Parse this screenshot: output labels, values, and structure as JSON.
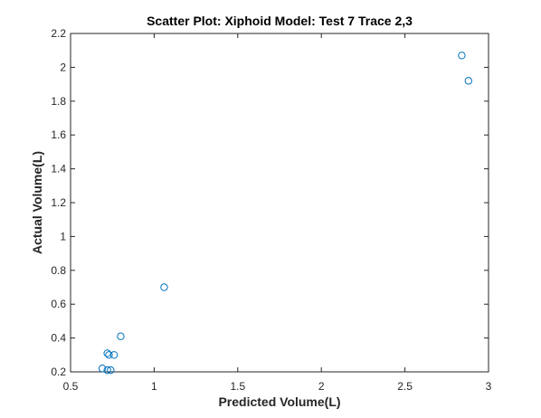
{
  "chart_data": {
    "type": "scatter",
    "title": "Scatter Plot: Xiphoid Model: Test 7 Trace 2,3",
    "xlabel": "Predicted Volume(L)",
    "ylabel": "Actual Volume(L)",
    "xlim": [
      0.5,
      3
    ],
    "ylim": [
      0.2,
      2.2
    ],
    "xticks": [
      0.5,
      1,
      1.5,
      2,
      2.5,
      3
    ],
    "xtick_labels": [
      "0.5",
      "1",
      "1.5",
      "2",
      "2.5",
      "3"
    ],
    "yticks": [
      0.2,
      0.4,
      0.6,
      0.8,
      1.0,
      1.2,
      1.4,
      1.6,
      1.8,
      2.0,
      2.2
    ],
    "ytick_labels": [
      "0.2",
      "0.4",
      "0.6",
      "0.8",
      "1",
      "1.2",
      "1.4",
      "1.6",
      "1.8",
      "2",
      "2.2"
    ],
    "grid": false,
    "marker": "open-circle",
    "marker_color": "#0072BD",
    "series": [
      {
        "points": [
          {
            "x": 2.84,
            "y": 2.07
          },
          {
            "x": 2.88,
            "y": 1.92
          },
          {
            "x": 1.06,
            "y": 0.7
          },
          {
            "x": 0.8,
            "y": 0.41
          },
          {
            "x": 0.72,
            "y": 0.31
          },
          {
            "x": 0.73,
            "y": 0.3
          },
          {
            "x": 0.76,
            "y": 0.3
          },
          {
            "x": 0.69,
            "y": 0.22
          },
          {
            "x": 0.72,
            "y": 0.21
          },
          {
            "x": 0.74,
            "y": 0.21
          }
        ]
      }
    ]
  }
}
